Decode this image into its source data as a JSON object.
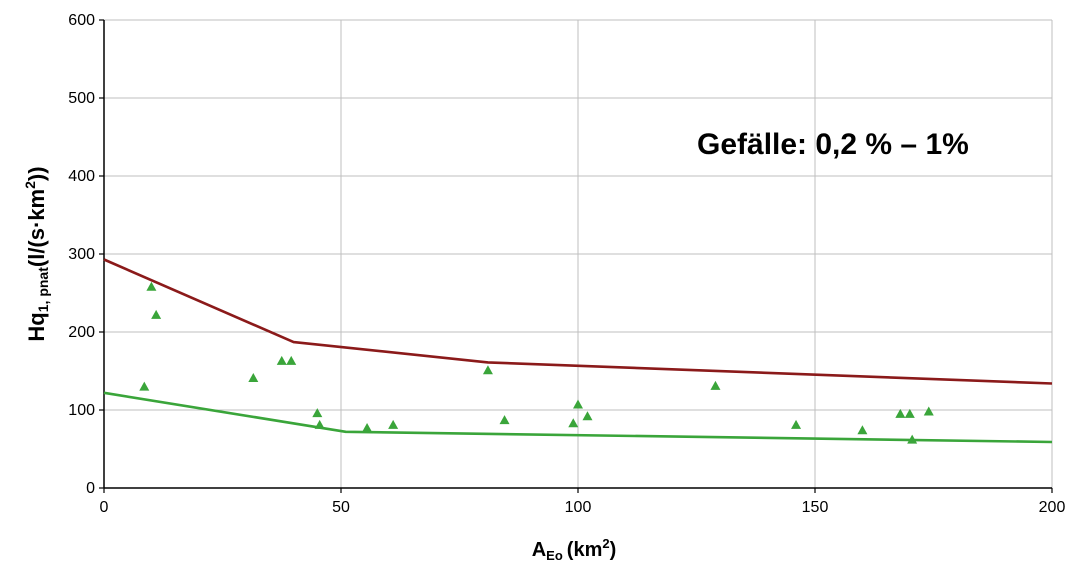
{
  "chart_data": {
    "type": "scatter",
    "annotation": "Gefälle: 0,2 % – 1%",
    "xlabel": {
      "main": "A",
      "sub": "Eo",
      "unit_pre": "(km",
      "unit_sup": "2",
      "unit_post": ")"
    },
    "ylabel": {
      "main": "Hq",
      "sub": "1, pnat",
      "unit_pre": "(l/(s·km",
      "unit_sup": "2",
      "unit_post": "))"
    },
    "xlim": [
      0,
      200
    ],
    "ylim": [
      0,
      600
    ],
    "xticks": [
      0,
      50,
      100,
      150,
      200
    ],
    "yticks": [
      0,
      100,
      200,
      300,
      400,
      500,
      600
    ],
    "grid": true,
    "colors": {
      "upper_line": "#8b1a1a",
      "lower_line": "#3aa53a",
      "points": "#3aa53a",
      "grid": "#bfbfbf"
    },
    "series": [
      {
        "type": "line",
        "color_key": "upper_line",
        "x": [
          0,
          40,
          81,
          200
        ],
        "y": [
          293,
          187,
          161,
          134
        ]
      },
      {
        "type": "line",
        "color_key": "lower_line",
        "x": [
          0,
          51,
          200
        ],
        "y": [
          122,
          72,
          59
        ]
      },
      {
        "type": "scatter",
        "color_key": "points",
        "x": [
          8.5,
          10,
          11,
          31.5,
          37.5,
          39.5,
          45,
          45.5,
          55.5,
          61,
          81,
          84.5,
          99,
          100,
          102,
          129,
          146,
          160,
          168,
          170,
          170.5,
          174
        ],
        "y": [
          130,
          258,
          222,
          141,
          163,
          163,
          96,
          81,
          77,
          81,
          151,
          87,
          83,
          107,
          92,
          131,
          81,
          74,
          95,
          95,
          62,
          98
        ]
      }
    ]
  }
}
